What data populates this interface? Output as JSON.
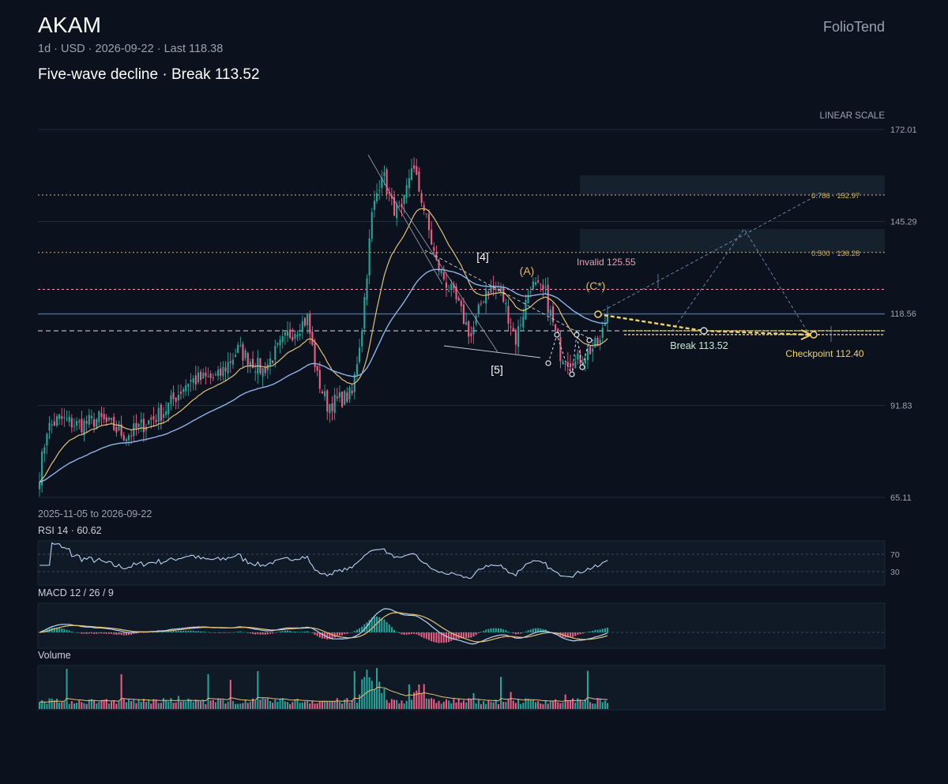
{
  "header": {
    "ticker": "AKAM",
    "subtitle": "1d · USD · 2026-09-22 · Last 118.38",
    "headline": "Five-wave decline · Break 113.52",
    "brand": "FolioTend",
    "scale_label": "LINEAR SCALE",
    "date_range": "2025-11-05 to 2026-09-22"
  },
  "colors": {
    "background": "#0b121d",
    "up": "#26a69a",
    "down": "#ef5f85",
    "ma_fast": "#e3c07a",
    "ma_slow": "#8fb2ea",
    "accent_yellow": "#f0d267",
    "invalid": "#e8a0b4",
    "fib": "#d8b65c"
  },
  "chart_data": {
    "type": "candlestick",
    "price_axis": {
      "ticks": [
        "172.01",
        "145.29",
        "118.56",
        "91.83",
        "65.11"
      ],
      "ylim": [
        65.11,
        172.01
      ]
    },
    "date_range": [
      "2025-11-05",
      "2026-09-22"
    ],
    "last": 118.38,
    "levels": {
      "invalidation": {
        "label": "Invalid 125.55",
        "value": 125.55
      },
      "break": {
        "label": "Break 113.52",
        "value": 113.52
      },
      "checkpoint": {
        "label": "Checkpoint 112.40",
        "value": 112.4
      },
      "fib_0786": {
        "label": "0.786 · 152.97",
        "value": 152.97
      },
      "fib_0500": {
        "label": "0.500 · 136.28",
        "value": 136.28
      }
    },
    "wave_labels": [
      "[4]",
      "[5]",
      "(A)",
      "(C*)"
    ],
    "anchors": [
      [
        0,
        72
      ],
      [
        3,
        85
      ],
      [
        8,
        88
      ],
      [
        16,
        86
      ],
      [
        24,
        88
      ],
      [
        35,
        83
      ],
      [
        50,
        90
      ],
      [
        60,
        99
      ],
      [
        72,
        100
      ],
      [
        80,
        108
      ],
      [
        90,
        102
      ],
      [
        100,
        112
      ],
      [
        108,
        117
      ],
      [
        112,
        100
      ],
      [
        116,
        92
      ],
      [
        126,
        95
      ],
      [
        130,
        115
      ],
      [
        134,
        147
      ],
      [
        138,
        160
      ],
      [
        142,
        150
      ],
      [
        146,
        147
      ],
      [
        150,
        162
      ],
      [
        154,
        152
      ],
      [
        160,
        133
      ],
      [
        168,
        122
      ],
      [
        174,
        112
      ],
      [
        180,
        126
      ],
      [
        186,
        125
      ],
      [
        192,
        111
      ],
      [
        198,
        127
      ],
      [
        204,
        124
      ],
      [
        210,
        107
      ],
      [
        216,
        104
      ],
      [
        220,
        107
      ],
      [
        226,
        110
      ],
      [
        229,
        119
      ]
    ],
    "rsi": {
      "label": "RSI 14 · 60.62",
      "period": 14,
      "value": 60.62,
      "levels": [
        "70",
        "30"
      ]
    },
    "macd": {
      "label": "MACD 12 / 26 / 9",
      "fast": 12,
      "slow": 26,
      "signal": 9
    },
    "volume": {
      "label": "Volume"
    }
  }
}
